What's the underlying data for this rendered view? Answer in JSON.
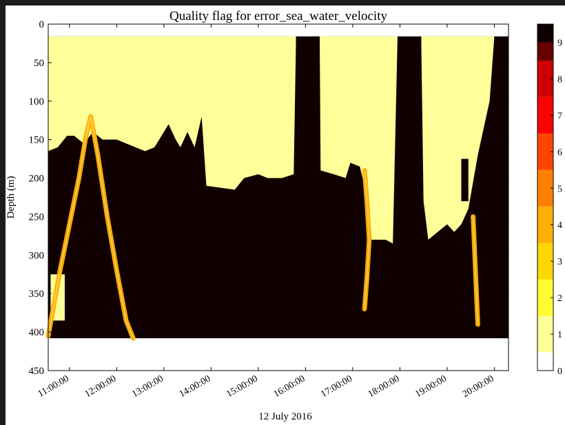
{
  "chart_data": {
    "type": "heatmap",
    "title": "Quality flag for error_sea_water_velocity",
    "xlabel": "12 July 2016",
    "ylabel": "Depth (m)",
    "x_ticks": [
      "11:00:00",
      "12:00:00",
      "13:00:00",
      "14:00:00",
      "15:00:00",
      "16:00:00",
      "17:00:00",
      "18:00:00",
      "19:00:00",
      "20:00:00"
    ],
    "y_ticks": [
      "0",
      "50",
      "100",
      "150",
      "200",
      "250",
      "300",
      "350",
      "400",
      "450"
    ],
    "ylim": [
      0,
      450
    ],
    "y_inverted": true,
    "x_range_hours": [
      10.55,
      20.3
    ],
    "data_depth_range": [
      16,
      408
    ],
    "colorbar": {
      "min": 0,
      "max": 9.5,
      "ticks": [
        "0",
        "1",
        "2",
        "3",
        "4",
        "5",
        "6",
        "7",
        "8",
        "9"
      ],
      "colors": [
        "#ffffff",
        "#ffff99",
        "#ffff33",
        "#ffd700",
        "#ffb000",
        "#ff8000",
        "#ff4500",
        "#ff0000",
        "#cc0000",
        "#660000",
        "#100000"
      ]
    },
    "grid": false,
    "layers": {
      "background_flag": 9,
      "good_region_flag": 1,
      "good_region_boundary": [
        {
          "t": 10.55,
          "d": 165
        },
        {
          "t": 10.75,
          "d": 160
        },
        {
          "t": 10.95,
          "d": 145
        },
        {
          "t": 11.1,
          "d": 145
        },
        {
          "t": 11.3,
          "d": 155
        },
        {
          "t": 11.5,
          "d": 140
        },
        {
          "t": 11.7,
          "d": 150
        },
        {
          "t": 11.9,
          "d": 150
        },
        {
          "t": 12.0,
          "d": 150
        },
        {
          "t": 12.2,
          "d": 155
        },
        {
          "t": 12.4,
          "d": 160
        },
        {
          "t": 12.6,
          "d": 165
        },
        {
          "t": 12.8,
          "d": 160
        },
        {
          "t": 13.0,
          "d": 140
        },
        {
          "t": 13.1,
          "d": 130
        },
        {
          "t": 13.25,
          "d": 150
        },
        {
          "t": 13.35,
          "d": 160
        },
        {
          "t": 13.5,
          "d": 140
        },
        {
          "t": 13.65,
          "d": 160
        },
        {
          "t": 13.8,
          "d": 120
        },
        {
          "t": 13.9,
          "d": 210
        },
        {
          "t": 14.5,
          "d": 215
        },
        {
          "t": 14.7,
          "d": 200
        },
        {
          "t": 15.0,
          "d": 195
        },
        {
          "t": 15.2,
          "d": 200
        },
        {
          "t": 15.5,
          "d": 200
        },
        {
          "t": 15.75,
          "d": 195
        },
        {
          "t": 15.8,
          "d": 16
        },
        {
          "t": 16.3,
          "d": 16
        },
        {
          "t": 16.32,
          "d": 190
        },
        {
          "t": 16.6,
          "d": 195
        },
        {
          "t": 16.85,
          "d": 200
        },
        {
          "t": 16.95,
          "d": 180
        },
        {
          "t": 17.15,
          "d": 185
        },
        {
          "t": 17.25,
          "d": 210
        },
        {
          "t": 17.35,
          "d": 260
        },
        {
          "t": 17.4,
          "d": 280
        },
        {
          "t": 17.7,
          "d": 280
        },
        {
          "t": 17.85,
          "d": 285
        },
        {
          "t": 17.95,
          "d": 16
        },
        {
          "t": 18.45,
          "d": 16
        },
        {
          "t": 18.5,
          "d": 230
        },
        {
          "t": 18.6,
          "d": 280
        },
        {
          "t": 18.8,
          "d": 270
        },
        {
          "t": 19.0,
          "d": 260
        },
        {
          "t": 19.15,
          "d": 270
        },
        {
          "t": 19.3,
          "d": 260
        },
        {
          "t": 19.45,
          "d": 240
        },
        {
          "t": 19.65,
          "d": 170
        },
        {
          "t": 19.9,
          "d": 100
        },
        {
          "t": 20.0,
          "d": 16
        }
      ],
      "light_patch": [
        {
          "t0": 10.6,
          "t1": 10.9,
          "d0": 325,
          "d1": 385
        }
      ],
      "suspect_bands": [
        {
          "flag": 4,
          "points": [
            {
              "t": 10.55,
              "d": 405
            },
            {
              "t": 10.8,
              "d": 320
            },
            {
              "t": 11.0,
              "d": 260
            },
            {
              "t": 11.2,
              "d": 200
            },
            {
              "t": 11.35,
              "d": 145
            },
            {
              "t": 11.45,
              "d": 120
            },
            {
              "t": 11.6,
              "d": 170
            },
            {
              "t": 11.8,
              "d": 250
            },
            {
              "t": 12.0,
              "d": 320
            },
            {
              "t": 12.2,
              "d": 385
            },
            {
              "t": 12.35,
              "d": 408
            }
          ]
        },
        {
          "flag": 4,
          "points": [
            {
              "t": 17.25,
              "d": 190
            },
            {
              "t": 17.3,
              "d": 230
            },
            {
              "t": 17.35,
              "d": 280
            },
            {
              "t": 17.3,
              "d": 330
            },
            {
              "t": 17.25,
              "d": 370
            }
          ]
        },
        {
          "flag": 4,
          "points": [
            {
              "t": 19.55,
              "d": 250
            },
            {
              "t": 19.6,
              "d": 320
            },
            {
              "t": 19.65,
              "d": 390
            }
          ]
        }
      ],
      "dark_columns": [
        {
          "t0": 15.8,
          "t1": 16.3,
          "d0": 16,
          "d1": 195
        },
        {
          "t0": 17.95,
          "t1": 18.45,
          "d0": 16,
          "d1": 285
        },
        {
          "t0": 20.0,
          "t1": 20.3,
          "d0": 16,
          "d1": 408
        },
        {
          "t0": 19.3,
          "t1": 19.45,
          "d0": 175,
          "d1": 230
        }
      ]
    }
  }
}
